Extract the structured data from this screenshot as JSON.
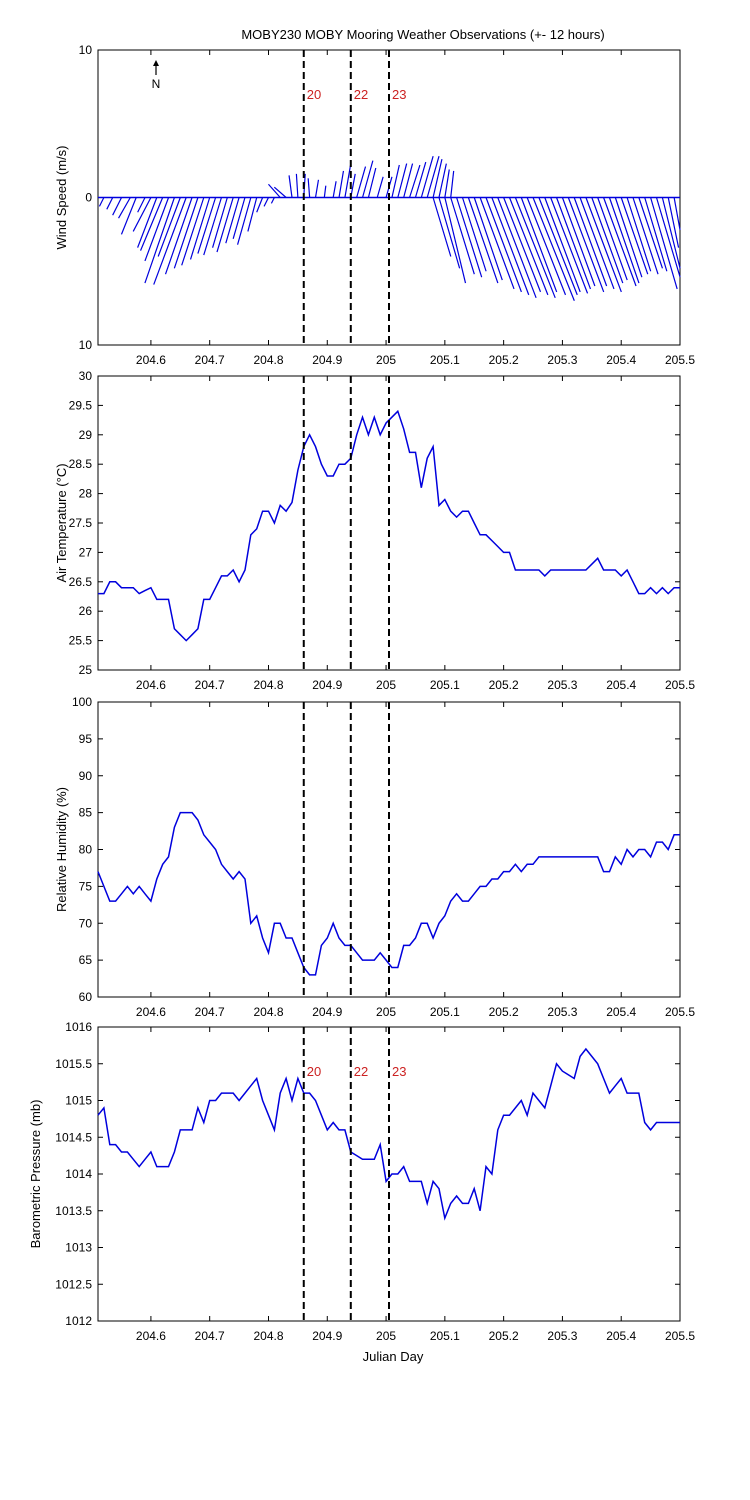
{
  "title": "MOBY230 MOBY Mooring Weather Observations (+- 12 hours)",
  "north_arrow_label": "N",
  "xlabel": "Julian Day",
  "colors": {
    "series": "#0000dd",
    "marker_label": "#cc2222",
    "axis": "#000000"
  },
  "chart_data": [
    {
      "type": "line",
      "subtype": "wind-stick",
      "ylabel": "Wind Speed (m/s)",
      "xlim": [
        204.51,
        205.5
      ],
      "ylim": [
        -10,
        10
      ],
      "yticks": [
        "10",
        "0",
        "10"
      ],
      "xticks": [
        "204.6",
        "204.7",
        "204.8",
        "204.9",
        "205",
        "205.1",
        "205.2",
        "205.3",
        "205.4",
        "205.5"
      ],
      "markers": [
        {
          "x": 204.86,
          "label": "20"
        },
        {
          "x": 204.94,
          "label": "22"
        },
        {
          "x": 205.005,
          "label": "23"
        }
      ],
      "sticks": [
        [
          204.52,
          -0.3,
          -0.6
        ],
        [
          204.535,
          -0.4,
          -0.8
        ],
        [
          204.55,
          -0.6,
          -1.2
        ],
        [
          204.565,
          -0.8,
          -1.4
        ],
        [
          204.575,
          -1.0,
          -2.5
        ],
        [
          204.59,
          -0.5,
          -1.0
        ],
        [
          204.6,
          -1.2,
          -2.3
        ],
        [
          204.61,
          -1.3,
          -3.4
        ],
        [
          204.62,
          -1.5,
          -3.6
        ],
        [
          204.63,
          -1.6,
          -4.3
        ],
        [
          204.64,
          -2.0,
          -5.8
        ],
        [
          204.65,
          -1.5,
          -4.0
        ],
        [
          204.66,
          -2.2,
          -5.9
        ],
        [
          204.67,
          -1.8,
          -5.2
        ],
        [
          204.68,
          -1.6,
          -4.8
        ],
        [
          204.69,
          -1.5,
          -4.6
        ],
        [
          204.7,
          -1.3,
          -4.2
        ],
        [
          204.71,
          -1.2,
          -3.8
        ],
        [
          204.72,
          -1.2,
          -3.9
        ],
        [
          204.73,
          -1.0,
          -3.4
        ],
        [
          204.74,
          -1.1,
          -3.7
        ],
        [
          204.75,
          -0.9,
          -3.1
        ],
        [
          204.76,
          -0.8,
          -2.8
        ],
        [
          204.77,
          -0.9,
          -3.2
        ],
        [
          204.78,
          -0.6,
          -2.3
        ],
        [
          204.79,
          -0.4,
          -1.0
        ],
        [
          204.8,
          -0.3,
          -0.6
        ],
        [
          204.81,
          -0.2,
          -0.4
        ],
        [
          204.82,
          -0.8,
          0.9
        ],
        [
          204.83,
          -0.8,
          0.7
        ],
        [
          204.84,
          -0.2,
          1.5
        ],
        [
          204.85,
          -0.1,
          1.6
        ],
        [
          204.86,
          0.1,
          1.6
        ],
        [
          204.87,
          -0.1,
          1.3
        ],
        [
          204.88,
          0.2,
          1.2
        ],
        [
          204.895,
          0.1,
          0.8
        ],
        [
          204.91,
          0.2,
          1.1
        ],
        [
          204.92,
          0.3,
          1.8
        ],
        [
          204.93,
          0.4,
          2.3
        ],
        [
          204.94,
          0.3,
          1.6
        ],
        [
          204.95,
          0.6,
          2.1
        ],
        [
          204.96,
          0.7,
          2.5
        ],
        [
          204.97,
          0.5,
          2.0
        ],
        [
          204.985,
          0.4,
          1.4
        ],
        [
          205.0,
          0.4,
          1.4
        ],
        [
          205.01,
          0.5,
          2.2
        ],
        [
          205.02,
          0.6,
          2.3
        ],
        [
          205.03,
          0.6,
          2.3
        ],
        [
          205.04,
          0.7,
          2.2
        ],
        [
          205.05,
          0.7,
          2.4
        ],
        [
          205.06,
          0.8,
          2.8
        ],
        [
          205.07,
          0.8,
          2.8
        ],
        [
          205.08,
          0.6,
          2.6
        ],
        [
          205.09,
          0.5,
          2.3
        ],
        [
          205.1,
          0.3,
          1.9
        ],
        [
          205.11,
          0.2,
          1.8
        ],
        [
          205.08,
          1.2,
          -4.0
        ],
        [
          205.09,
          1.4,
          -4.8
        ],
        [
          205.1,
          1.4,
          -5.8
        ],
        [
          205.11,
          1.6,
          -5.2
        ],
        [
          205.12,
          1.7,
          -5.4
        ],
        [
          205.13,
          1.6,
          -5.0
        ],
        [
          205.14,
          2.0,
          -5.8
        ],
        [
          205.15,
          1.9,
          -5.6
        ],
        [
          205.16,
          2.3,
          -6.2
        ],
        [
          205.17,
          2.4,
          -6.4
        ],
        [
          205.18,
          2.5,
          -6.6
        ],
        [
          205.19,
          2.6,
          -6.8
        ],
        [
          205.2,
          2.5,
          -6.4
        ],
        [
          205.21,
          2.6,
          -6.6
        ],
        [
          205.22,
          2.7,
          -6.8
        ],
        [
          205.23,
          2.4,
          -6.4
        ],
        [
          205.24,
          2.6,
          -6.6
        ],
        [
          205.25,
          2.8,
          -7.0
        ],
        [
          205.26,
          2.6,
          -6.6
        ],
        [
          205.27,
          2.4,
          -6.4
        ],
        [
          205.28,
          2.5,
          -6.5
        ],
        [
          205.29,
          2.3,
          -6.2
        ],
        [
          205.3,
          2.2,
          -6.0
        ],
        [
          205.31,
          2.4,
          -6.4
        ],
        [
          205.32,
          2.2,
          -6.0
        ],
        [
          205.33,
          2.3,
          -6.2
        ],
        [
          205.34,
          2.4,
          -6.4
        ],
        [
          205.35,
          2.1,
          -5.8
        ],
        [
          205.36,
          2.0,
          -5.6
        ],
        [
          205.37,
          2.2,
          -6.0
        ],
        [
          205.38,
          2.0,
          -5.8
        ],
        [
          205.39,
          1.8,
          -5.4
        ],
        [
          205.4,
          1.8,
          -5.2
        ],
        [
          205.41,
          1.6,
          -5.0
        ],
        [
          205.42,
          1.7,
          -5.2
        ],
        [
          205.43,
          1.6,
          -4.8
        ],
        [
          205.44,
          1.5,
          -5.0
        ],
        [
          205.45,
          1.8,
          -6.2
        ],
        [
          205.46,
          1.6,
          -5.4
        ],
        [
          205.47,
          1.2,
          -4.8
        ],
        [
          205.48,
          0.7,
          -3.4
        ],
        [
          205.49,
          0.4,
          -2.2
        ]
      ]
    },
    {
      "type": "line",
      "ylabel": "Air Temperature (°C)",
      "xlim": [
        204.51,
        205.5
      ],
      "ylim": [
        25,
        30
      ],
      "yticks": [
        "25",
        "25.5",
        "26",
        "26.5",
        "27",
        "27.5",
        "28",
        "28.5",
        "29",
        "29.5",
        "30"
      ],
      "xticks": [
        "204.6",
        "204.7",
        "204.8",
        "204.9",
        "205",
        "205.1",
        "205.2",
        "205.3",
        "205.4",
        "205.5"
      ],
      "markers": [
        {
          "x": 204.86,
          "label": ""
        },
        {
          "x": 204.94,
          "label": ""
        },
        {
          "x": 205.005,
          "label": ""
        }
      ],
      "x": [
        204.51,
        204.52,
        204.53,
        204.54,
        204.55,
        204.56,
        204.57,
        204.58,
        204.59,
        204.6,
        204.61,
        204.62,
        204.63,
        204.64,
        204.65,
        204.66,
        204.67,
        204.68,
        204.69,
        204.7,
        204.71,
        204.72,
        204.73,
        204.74,
        204.75,
        204.76,
        204.77,
        204.78,
        204.79,
        204.8,
        204.81,
        204.82,
        204.83,
        204.84,
        204.85,
        204.86,
        204.87,
        204.88,
        204.89,
        204.9,
        204.91,
        204.92,
        204.93,
        204.94,
        204.95,
        204.96,
        204.97,
        204.98,
        204.99,
        205.0,
        205.01,
        205.02,
        205.03,
        205.04,
        205.05,
        205.06,
        205.07,
        205.08,
        205.09,
        205.1,
        205.11,
        205.12,
        205.13,
        205.14,
        205.15,
        205.16,
        205.17,
        205.18,
        205.19,
        205.2,
        205.21,
        205.22,
        205.23,
        205.24,
        205.25,
        205.26,
        205.27,
        205.28,
        205.29,
        205.3,
        205.31,
        205.32,
        205.33,
        205.34,
        205.35,
        205.36,
        205.37,
        205.38,
        205.39,
        205.4,
        205.41,
        205.42,
        205.43,
        205.44,
        205.45,
        205.46,
        205.47,
        205.48,
        205.49,
        205.5
      ],
      "y": [
        26.3,
        26.3,
        26.5,
        26.5,
        26.4,
        26.4,
        26.4,
        26.3,
        26.35,
        26.4,
        26.2,
        26.2,
        26.2,
        25.7,
        25.6,
        25.5,
        25.6,
        25.7,
        26.2,
        26.2,
        26.4,
        26.6,
        26.6,
        26.7,
        26.5,
        26.7,
        27.3,
        27.4,
        27.7,
        27.7,
        27.5,
        27.8,
        27.7,
        27.85,
        28.4,
        28.8,
        29.0,
        28.8,
        28.5,
        28.3,
        28.3,
        28.5,
        28.5,
        28.6,
        29.0,
        29.3,
        29.0,
        29.3,
        29.0,
        29.2,
        29.3,
        29.4,
        29.1,
        28.7,
        28.7,
        28.1,
        28.6,
        28.8,
        27.8,
        27.9,
        27.7,
        27.6,
        27.7,
        27.7,
        27.5,
        27.3,
        27.3,
        27.2,
        27.1,
        27.0,
        27.0,
        26.7,
        26.7,
        26.7,
        26.7,
        26.7,
        26.6,
        26.7,
        26.7,
        26.7,
        26.7,
        26.7,
        26.7,
        26.7,
        26.8,
        26.9,
        26.7,
        26.7,
        26.7,
        26.6,
        26.7,
        26.5,
        26.3,
        26.3,
        26.4,
        26.3,
        26.4,
        26.3,
        26.4,
        26.4
      ]
    },
    {
      "type": "line",
      "ylabel": "Relative Humidity (%)",
      "xlim": [
        204.51,
        205.5
      ],
      "ylim": [
        60,
        100
      ],
      "yticks": [
        "60",
        "65",
        "70",
        "75",
        "80",
        "85",
        "90",
        "95",
        "100"
      ],
      "xticks": [
        "204.6",
        "204.7",
        "204.8",
        "204.9",
        "205",
        "205.1",
        "205.2",
        "205.3",
        "205.4",
        "205.5"
      ],
      "markers": [
        {
          "x": 204.86,
          "label": ""
        },
        {
          "x": 204.94,
          "label": ""
        },
        {
          "x": 205.005,
          "label": ""
        }
      ],
      "x": [
        204.51,
        204.52,
        204.53,
        204.54,
        204.55,
        204.56,
        204.57,
        204.58,
        204.59,
        204.6,
        204.61,
        204.62,
        204.63,
        204.64,
        204.65,
        204.66,
        204.67,
        204.68,
        204.69,
        204.7,
        204.71,
        204.72,
        204.73,
        204.74,
        204.75,
        204.76,
        204.77,
        204.78,
        204.79,
        204.8,
        204.81,
        204.82,
        204.83,
        204.84,
        204.85,
        204.86,
        204.87,
        204.88,
        204.89,
        204.9,
        204.91,
        204.92,
        204.93,
        204.94,
        204.95,
        204.96,
        204.97,
        204.98,
        204.99,
        205.0,
        205.01,
        205.02,
        205.03,
        205.04,
        205.05,
        205.06,
        205.07,
        205.08,
        205.09,
        205.1,
        205.11,
        205.12,
        205.13,
        205.14,
        205.15,
        205.16,
        205.17,
        205.18,
        205.19,
        205.2,
        205.21,
        205.22,
        205.23,
        205.24,
        205.25,
        205.26,
        205.27,
        205.28,
        205.29,
        205.3,
        205.31,
        205.32,
        205.33,
        205.34,
        205.35,
        205.36,
        205.37,
        205.38,
        205.39,
        205.4,
        205.41,
        205.42,
        205.43,
        205.44,
        205.45,
        205.46,
        205.47,
        205.48,
        205.49,
        205.5
      ],
      "y": [
        77,
        75,
        73,
        73,
        74,
        75,
        74,
        75,
        74,
        73,
        76,
        78,
        79,
        83,
        85,
        85,
        85,
        84,
        82,
        81,
        80,
        78,
        77,
        76,
        77,
        76,
        70,
        71,
        68,
        66,
        70,
        70,
        68,
        68,
        66,
        64,
        63,
        63,
        67,
        68,
        70,
        68,
        67,
        67,
        66,
        65,
        65,
        65,
        66,
        65,
        64,
        64,
        67,
        67,
        68,
        70,
        70,
        68,
        70,
        71,
        73,
        74,
        73,
        73,
        74,
        75,
        75,
        76,
        76,
        77,
        77,
        78,
        77,
        78,
        78,
        79,
        79,
        79,
        79,
        79,
        79,
        79,
        79,
        79,
        79,
        79,
        77,
        77,
        79,
        78,
        80,
        79,
        80,
        80,
        79,
        81,
        81,
        80,
        82,
        82
      ]
    },
    {
      "type": "line",
      "ylabel": "Barometric Pressure (mb)",
      "xlim": [
        204.51,
        205.5
      ],
      "ylim": [
        1012,
        1016
      ],
      "yticks": [
        "1012",
        "1012.5",
        "1013",
        "1013.5",
        "1014",
        "1014.5",
        "1015",
        "1015.5",
        "1016"
      ],
      "xticks": [
        "204.6",
        "204.7",
        "204.8",
        "204.9",
        "205",
        "205.1",
        "205.2",
        "205.3",
        "205.4",
        "205.5"
      ],
      "markers": [
        {
          "x": 204.86,
          "label": "20"
        },
        {
          "x": 204.94,
          "label": "22"
        },
        {
          "x": 205.005,
          "label": "23"
        }
      ],
      "x": [
        204.51,
        204.52,
        204.53,
        204.54,
        204.55,
        204.56,
        204.57,
        204.58,
        204.59,
        204.6,
        204.61,
        204.62,
        204.63,
        204.64,
        204.65,
        204.66,
        204.67,
        204.68,
        204.69,
        204.7,
        204.71,
        204.72,
        204.73,
        204.74,
        204.75,
        204.76,
        204.77,
        204.78,
        204.79,
        204.8,
        204.81,
        204.82,
        204.83,
        204.84,
        204.85,
        204.86,
        204.87,
        204.88,
        204.89,
        204.9,
        204.91,
        204.92,
        204.93,
        204.94,
        204.95,
        204.96,
        204.97,
        204.98,
        204.99,
        205.0,
        205.01,
        205.02,
        205.03,
        205.04,
        205.05,
        205.06,
        205.07,
        205.08,
        205.09,
        205.1,
        205.11,
        205.12,
        205.13,
        205.14,
        205.15,
        205.16,
        205.17,
        205.18,
        205.19,
        205.2,
        205.21,
        205.22,
        205.23,
        205.24,
        205.25,
        205.26,
        205.27,
        205.28,
        205.29,
        205.3,
        205.31,
        205.32,
        205.33,
        205.34,
        205.35,
        205.36,
        205.37,
        205.38,
        205.39,
        205.4,
        205.41,
        205.42,
        205.43,
        205.44,
        205.45,
        205.46,
        205.47,
        205.48,
        205.49,
        205.5
      ],
      "y": [
        1014.8,
        1014.9,
        1014.4,
        1014.4,
        1014.3,
        1014.3,
        1014.2,
        1014.1,
        1014.2,
        1014.3,
        1014.1,
        1014.1,
        1014.1,
        1014.3,
        1014.6,
        1014.6,
        1014.6,
        1014.9,
        1014.7,
        1015.0,
        1015.0,
        1015.1,
        1015.1,
        1015.1,
        1015.0,
        1015.1,
        1015.2,
        1015.3,
        1015.0,
        1014.8,
        1014.6,
        1015.1,
        1015.3,
        1015.0,
        1015.3,
        1015.1,
        1015.1,
        1015.0,
        1014.8,
        1014.6,
        1014.7,
        1014.6,
        1014.6,
        1014.3,
        1014.25,
        1014.2,
        1014.2,
        1014.2,
        1014.4,
        1013.9,
        1014.0,
        1014.0,
        1014.1,
        1013.9,
        1013.9,
        1013.9,
        1013.6,
        1013.9,
        1013.8,
        1013.4,
        1013.6,
        1013.7,
        1013.6,
        1013.6,
        1013.8,
        1013.5,
        1014.1,
        1014.0,
        1014.6,
        1014.8,
        1014.8,
        1014.9,
        1015.0,
        1014.8,
        1015.1,
        1015.0,
        1014.9,
        1015.2,
        1015.5,
        1015.4,
        1015.35,
        1015.3,
        1015.6,
        1015.7,
        1015.6,
        1015.5,
        1015.3,
        1015.1,
        1015.2,
        1015.3,
        1015.1,
        1015.1,
        1015.1,
        1014.7,
        1014.6,
        1014.7,
        1014.7,
        1014.7,
        1014.7,
        1014.7
      ]
    }
  ]
}
